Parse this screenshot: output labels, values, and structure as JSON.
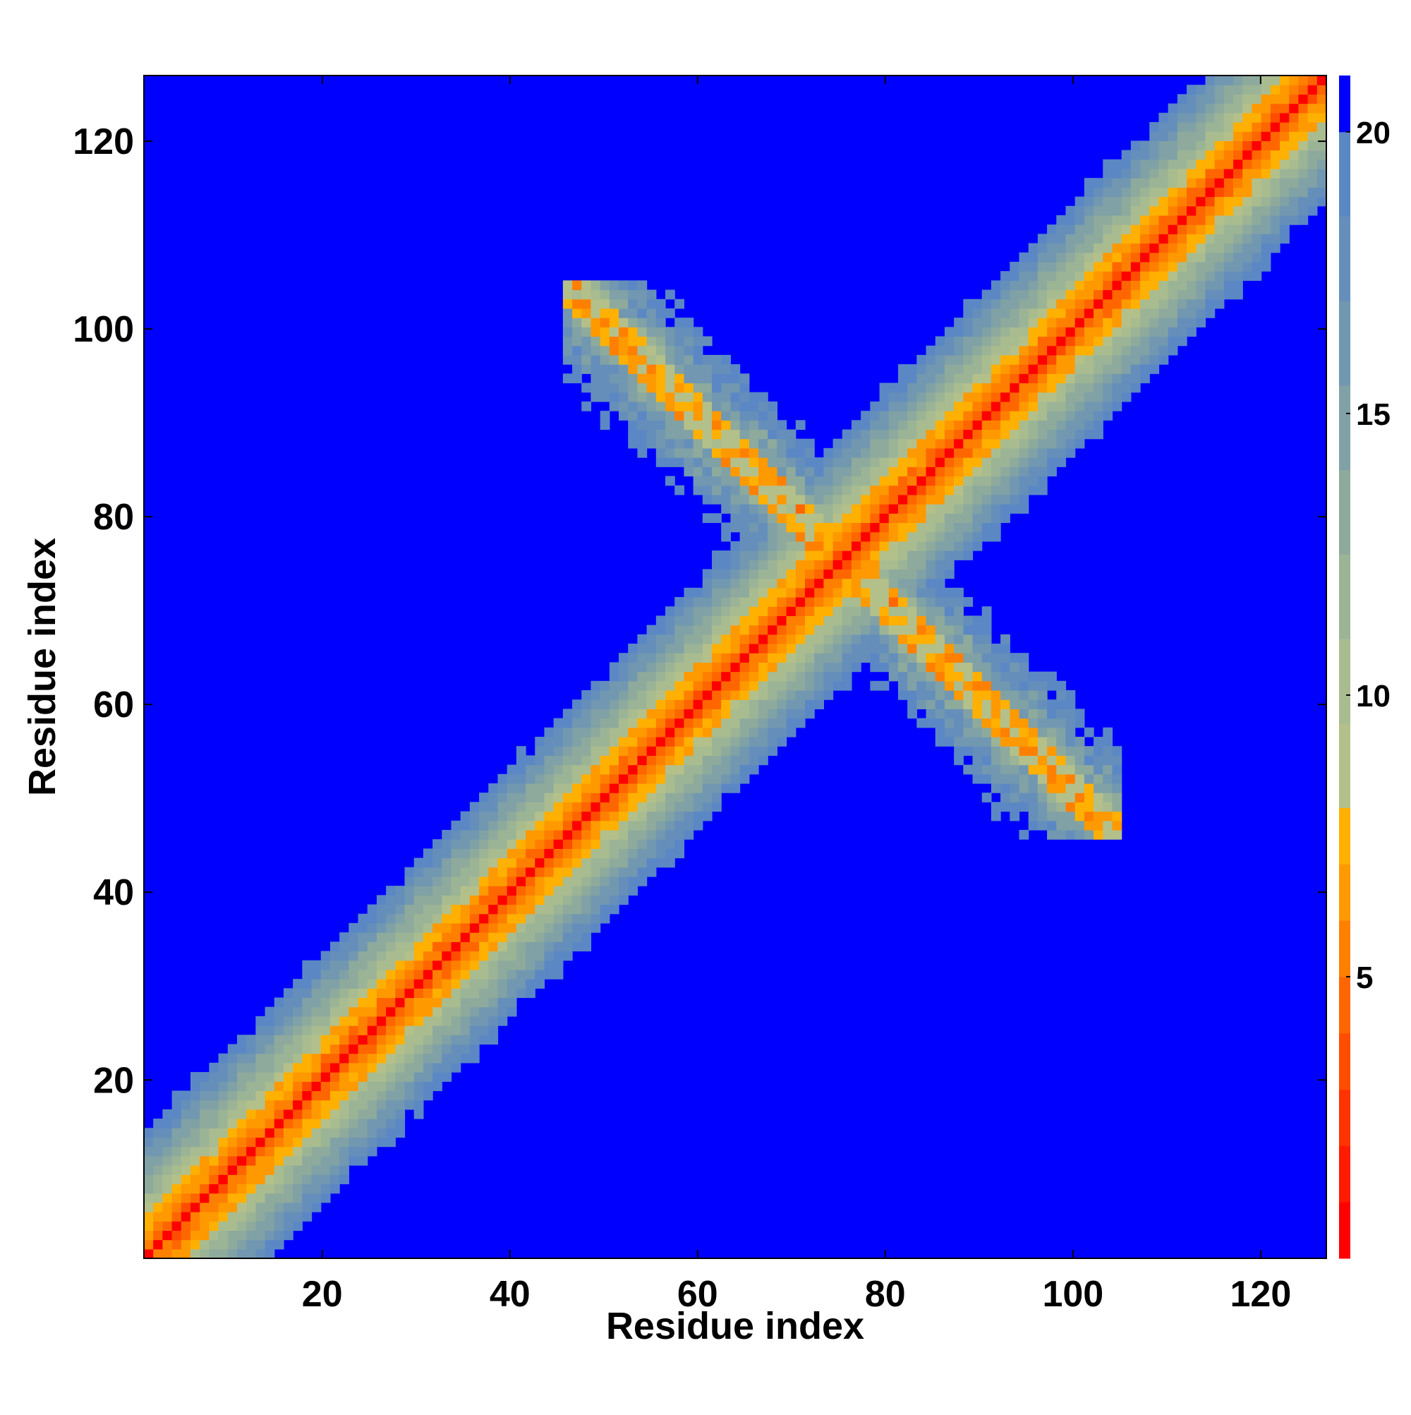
{
  "chart_data": {
    "type": "heatmap",
    "title": "",
    "xlabel": "Residue index",
    "ylabel": "Residue index",
    "xlim": [
      1,
      127
    ],
    "ylim": [
      1,
      127
    ],
    "x_ticks": [
      20,
      40,
      60,
      80,
      100,
      120
    ],
    "y_ticks": [
      20,
      40,
      60,
      80,
      100,
      120
    ],
    "colorbar": {
      "range": [
        0,
        21
      ],
      "ticks": [
        5,
        10,
        15,
        20
      ],
      "levels": [
        {
          "upper": 1.0,
          "color": "#ff0000"
        },
        {
          "upper": 2.0,
          "color": "#ff1a00"
        },
        {
          "upper": 3.0,
          "color": "#ff3300"
        },
        {
          "upper": 4.0,
          "color": "#ff4d00"
        },
        {
          "upper": 5.0,
          "color": "#ff6600"
        },
        {
          "upper": 6.0,
          "color": "#ff8000"
        },
        {
          "upper": 7.0,
          "color": "#ff9900"
        },
        {
          "upper": 8.0,
          "color": "#ffb000"
        },
        {
          "upper": 9.5,
          "color": "#b4c08a"
        },
        {
          "upper": 11.0,
          "color": "#a9bc90"
        },
        {
          "upper": 12.5,
          "color": "#9cb496"
        },
        {
          "upper": 14.0,
          "color": "#8eaa9c"
        },
        {
          "upper": 15.5,
          "color": "#80a1a6"
        },
        {
          "upper": 17.0,
          "color": "#7198b0"
        },
        {
          "upper": 18.5,
          "color": "#658fba"
        },
        {
          "upper": 20.0,
          "color": "#5b88c4"
        },
        {
          "upper": 21.0,
          "color": "#0000ff"
        }
      ]
    },
    "data_description": {
      "diagonal_band": {
        "from": 1,
        "to": 127
      },
      "anti_parallel_contacts": [
        {
          "segment_a": [
            46,
            76
          ],
          "segment_b": [
            76,
            105
          ]
        },
        {
          "segment_a": [
            76,
            105
          ],
          "segment_b": [
            46,
            76
          ]
        }
      ]
    },
    "grid": false,
    "legend": "colorbar-right"
  }
}
